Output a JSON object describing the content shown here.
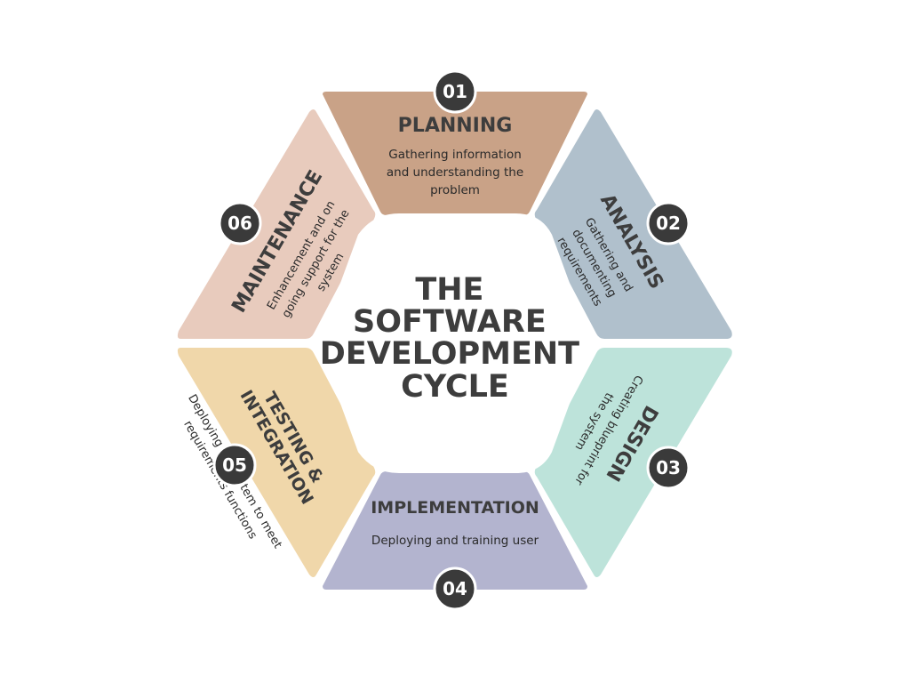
{
  "center": {
    "lines": [
      "THE",
      "SOFTWARE",
      "DEVELOPMENT",
      "CYCLE"
    ]
  },
  "stages": [
    {
      "number": "01",
      "title_lines": [
        "PLANNING"
      ],
      "desc_lines": [
        "Gathering information",
        "and understanding the",
        "problem"
      ],
      "color": "#c9a287"
    },
    {
      "number": "02",
      "title_lines": [
        "ANALYSIS"
      ],
      "desc_lines": [
        "Gathering  and",
        "documenting",
        "requirements"
      ],
      "color": "#b0c0cc"
    },
    {
      "number": "03",
      "title_lines": [
        "DESIGN"
      ],
      "desc_lines": [
        "Creating blueprint for",
        "the system"
      ],
      "color": "#bde3da"
    },
    {
      "number": "04",
      "title_lines": [
        "IMPLEMENTATION"
      ],
      "desc_lines": [
        "Deploying and training  user"
      ],
      "color": "#b3b4cf"
    },
    {
      "number": "05",
      "title_lines": [
        "TESTING &",
        "INTEGRATION"
      ],
      "desc_lines": [
        "Deploying the system to meet",
        "requirements functions"
      ],
      "color": "#f0d7aa"
    },
    {
      "number": "06",
      "title_lines": [
        "MAINTENANCE"
      ],
      "desc_lines": [
        "Enhancement and on",
        "going support for the",
        "system"
      ],
      "color": "#e8cbbd"
    }
  ]
}
